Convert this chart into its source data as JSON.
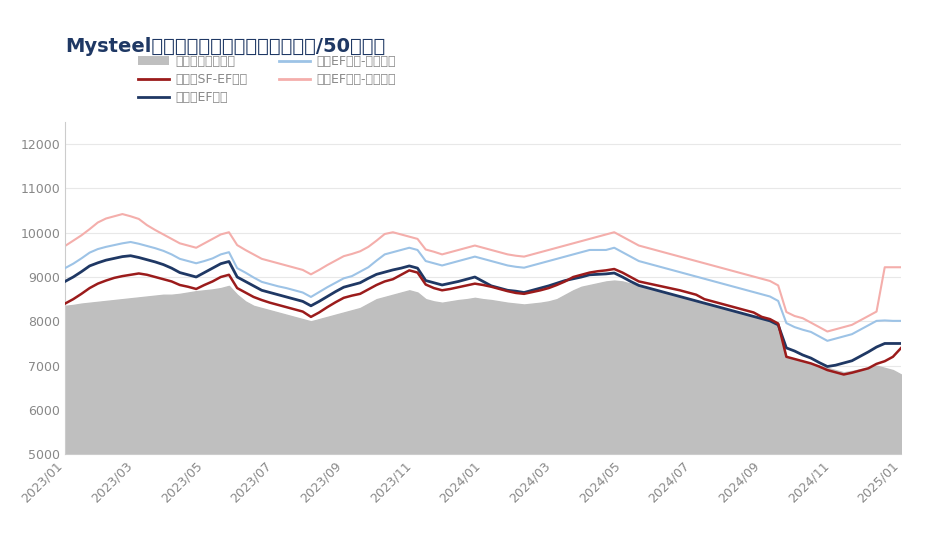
{
  "title": "Mysteel国内高碳铬铁冶炼即期成本（元/50基吨）",
  "title_color": "#1F3864",
  "ylim": [
    5000,
    12500
  ],
  "yticks": [
    5000,
    6000,
    7000,
    8000,
    9000,
    10000,
    11000,
    12000
  ],
  "xtick_labels": [
    "2023/01",
    "2023/03",
    "2023/05",
    "2023/07",
    "2023/09",
    "2023/11",
    "2024/01",
    "2024/03",
    "2024/05",
    "2024/07",
    "2024/09",
    "2024/11",
    "2025/01"
  ],
  "legend_labels": [
    "高碳铬铁现货价格",
    "内蒙古SF-EF工艺",
    "内蒙古EF工艺",
    "贵州EF工艺-地方电网",
    "贵州EF工艺-南方电网"
  ],
  "fill_color": "#BFBFBF",
  "line_colors": {
    "sf_ef": "#9B1B1B",
    "nmg_ef": "#1F3864",
    "gz_local": "#9DC3E6",
    "gz_south": "#F4AEAB"
  },
  "spot_price": [
    8350,
    8370,
    8400,
    8420,
    8440,
    8460,
    8480,
    8500,
    8520,
    8540,
    8560,
    8580,
    8600,
    8600,
    8620,
    8650,
    8680,
    8700,
    8720,
    8750,
    8800,
    8600,
    8450,
    8350,
    8300,
    8250,
    8200,
    8150,
    8100,
    8050,
    8000,
    8050,
    8100,
    8150,
    8200,
    8250,
    8300,
    8400,
    8500,
    8550,
    8600,
    8650,
    8700,
    8650,
    8500,
    8450,
    8420,
    8450,
    8480,
    8500,
    8530,
    8500,
    8480,
    8450,
    8420,
    8400,
    8380,
    8400,
    8420,
    8450,
    8500,
    8600,
    8700,
    8780,
    8820,
    8860,
    8900,
    8920,
    8900,
    8850,
    8800,
    8750,
    8700,
    8650,
    8600,
    8550,
    8500,
    8450,
    8400,
    8350,
    8300,
    8250,
    8200,
    8150,
    8100,
    8050,
    8000,
    7900,
    7200,
    7150,
    7100,
    7050,
    7000,
    6950,
    6900,
    6850,
    6880,
    6920,
    6950,
    7000,
    6950,
    6900,
    6800
  ],
  "nmg_sf_ef": [
    8400,
    8500,
    8620,
    8750,
    8850,
    8920,
    8980,
    9020,
    9050,
    9080,
    9050,
    9000,
    8950,
    8900,
    8820,
    8780,
    8730,
    8820,
    8900,
    9000,
    9050,
    8750,
    8650,
    8550,
    8480,
    8420,
    8370,
    8320,
    8270,
    8220,
    8100,
    8200,
    8320,
    8430,
    8530,
    8580,
    8620,
    8720,
    8820,
    8900,
    8950,
    9050,
    9150,
    9100,
    8830,
    8750,
    8700,
    8730,
    8770,
    8810,
    8850,
    8820,
    8780,
    8730,
    8680,
    8640,
    8620,
    8660,
    8700,
    8750,
    8820,
    8900,
    9000,
    9050,
    9100,
    9130,
    9150,
    9180,
    9100,
    9000,
    8900,
    8860,
    8820,
    8780,
    8740,
    8700,
    8650,
    8600,
    8500,
    8450,
    8400,
    8350,
    8300,
    8250,
    8200,
    8100,
    8050,
    7950,
    7200,
    7150,
    7100,
    7050,
    6980,
    6900,
    6850,
    6800,
    6840,
    6890,
    6940,
    7040,
    7100,
    7200,
    7400
  ],
  "nmg_ef": [
    8900,
    9000,
    9120,
    9250,
    9320,
    9380,
    9420,
    9460,
    9480,
    9440,
    9390,
    9340,
    9280,
    9200,
    9100,
    9050,
    9000,
    9100,
    9200,
    9300,
    9350,
    9000,
    8900,
    8800,
    8700,
    8650,
    8600,
    8550,
    8500,
    8450,
    8350,
    8450,
    8560,
    8670,
    8770,
    8820,
    8870,
    8970,
    9060,
    9110,
    9160,
    9200,
    9250,
    9200,
    8920,
    8870,
    8820,
    8860,
    8900,
    8950,
    9000,
    8900,
    8800,
    8750,
    8700,
    8680,
    8650,
    8700,
    8750,
    8800,
    8860,
    8920,
    8960,
    9000,
    9050,
    9060,
    9070,
    9090,
    9000,
    8900,
    8810,
    8760,
    8710,
    8660,
    8610,
    8560,
    8510,
    8460,
    8410,
    8360,
    8310,
    8260,
    8210,
    8160,
    8110,
    8060,
    8010,
    7920,
    7400,
    7330,
    7240,
    7170,
    7070,
    6980,
    7010,
    7060,
    7110,
    7210,
    7310,
    7420,
    7500,
    7500,
    7500
  ],
  "gz_local": [
    9200,
    9300,
    9420,
    9550,
    9630,
    9680,
    9720,
    9760,
    9790,
    9750,
    9700,
    9650,
    9590,
    9510,
    9410,
    9360,
    9310,
    9360,
    9420,
    9510,
    9560,
    9200,
    9100,
    8990,
    8890,
    8840,
    8790,
    8750,
    8700,
    8650,
    8550,
    8660,
    8770,
    8870,
    8970,
    9020,
    9120,
    9220,
    9370,
    9510,
    9560,
    9610,
    9660,
    9610,
    9360,
    9310,
    9260,
    9310,
    9360,
    9410,
    9460,
    9410,
    9360,
    9310,
    9260,
    9230,
    9210,
    9260,
    9310,
    9360,
    9410,
    9460,
    9510,
    9560,
    9610,
    9610,
    9610,
    9660,
    9560,
    9460,
    9360,
    9310,
    9260,
    9210,
    9160,
    9110,
    9060,
    9010,
    8960,
    8910,
    8860,
    8810,
    8760,
    8710,
    8660,
    8610,
    8560,
    8460,
    7960,
    7870,
    7810,
    7760,
    7660,
    7560,
    7610,
    7660,
    7710,
    7810,
    7910,
    8010,
    8020,
    8010,
    8010
  ],
  "gz_south": [
    9700,
    9820,
    9940,
    10080,
    10230,
    10320,
    10370,
    10420,
    10370,
    10310,
    10170,
    10060,
    9960,
    9860,
    9760,
    9710,
    9660,
    9760,
    9860,
    9960,
    10010,
    9720,
    9610,
    9510,
    9410,
    9360,
    9310,
    9260,
    9210,
    9160,
    9060,
    9160,
    9270,
    9370,
    9470,
    9520,
    9580,
    9680,
    9820,
    9970,
    10010,
    9960,
    9910,
    9860,
    9620,
    9570,
    9510,
    9560,
    9610,
    9660,
    9710,
    9660,
    9610,
    9560,
    9510,
    9480,
    9460,
    9510,
    9560,
    9610,
    9660,
    9710,
    9760,
    9810,
    9860,
    9910,
    9960,
    10010,
    9910,
    9810,
    9710,
    9660,
    9610,
    9560,
    9510,
    9460,
    9410,
    9360,
    9310,
    9260,
    9210,
    9160,
    9110,
    9060,
    9010,
    8960,
    8910,
    8810,
    8210,
    8120,
    8070,
    7970,
    7870,
    7770,
    7820,
    7870,
    7920,
    8020,
    8120,
    8220,
    9220,
    9220,
    9220
  ]
}
